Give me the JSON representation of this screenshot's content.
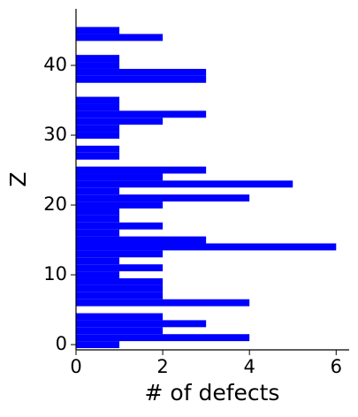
{
  "chart_data": {
    "type": "barh",
    "xlabel": "# of defects",
    "ylabel": "Z",
    "color": "#0000ff",
    "y": [
      0,
      1,
      2,
      3,
      4,
      5,
      6,
      7,
      8,
      9,
      10,
      11,
      12,
      13,
      14,
      15,
      16,
      17,
      18,
      19,
      20,
      21,
      22,
      23,
      24,
      25,
      26,
      27,
      28,
      29,
      30,
      31,
      32,
      33,
      34,
      35,
      36,
      37,
      38,
      39,
      40,
      41,
      42,
      43,
      44,
      45
    ],
    "values": [
      1,
      4,
      2,
      3,
      2,
      0,
      4,
      2,
      2,
      2,
      1,
      2,
      1,
      2,
      6,
      3,
      1,
      2,
      1,
      1,
      2,
      4,
      1,
      5,
      2,
      3,
      0,
      1,
      1,
      0,
      1,
      1,
      2,
      3,
      1,
      1,
      0,
      0,
      3,
      3,
      1,
      1,
      0,
      0,
      2,
      1
    ],
    "xlim": [
      0,
      6.3
    ],
    "xticks": [
      0,
      2,
      4,
      6
    ],
    "ylim": [
      -0.75,
      48.1
    ],
    "yticks": [
      0,
      10,
      20,
      30,
      40
    ]
  }
}
